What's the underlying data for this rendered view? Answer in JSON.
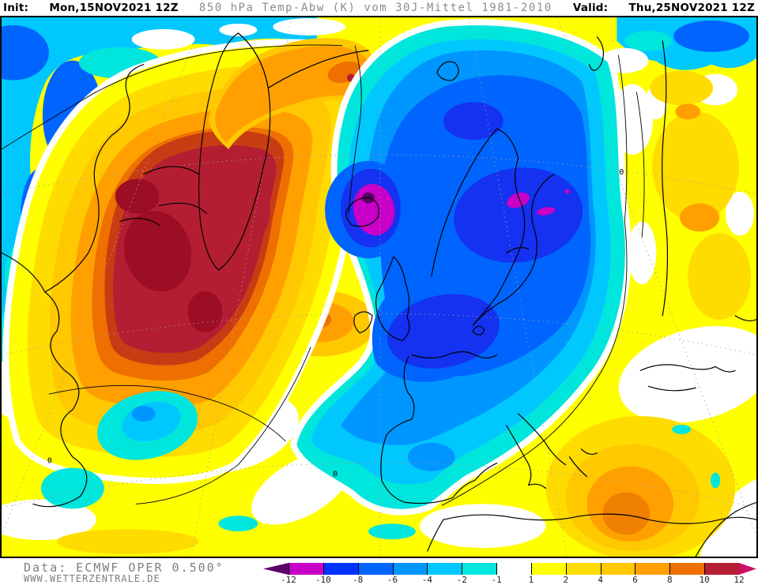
{
  "header": {
    "init_label": "Init:",
    "init_value": "Mon,15NOV2021 12Z",
    "map_title": "850 hPa Temp-Abw (K) vom 30J-Mittel 1981-2010",
    "valid_label": "Valid:",
    "valid_value": "Thu,25NOV2021 12Z"
  },
  "footer": {
    "data_source": "Data: ECMWF OPER 0.500°",
    "website": "WWW.WETTERZENTRALE.DE"
  },
  "legend": {
    "unit": "K",
    "tick_labels": [
      "-12",
      "-10",
      "-8",
      "-6",
      "-4",
      "-2",
      "-1",
      "1",
      "2",
      "4",
      "6",
      "8",
      "10",
      "12"
    ],
    "segment_colors": [
      "#C800C8",
      "#0032FF",
      "#0064FF",
      "#0096FF",
      "#00C8FF",
      "#00E6DC",
      "#FFFFFF",
      "#FFFF00",
      "#FFDC00",
      "#FFC800",
      "#FFA000",
      "#EE7000",
      "#B41E32"
    ],
    "arrow_left_color": "#5A0066",
    "arrow_right_color": "#CC0F69"
  },
  "map": {
    "contour_label": "0",
    "projection_area": "North Atlantic / Europe",
    "regions": [
      {
        "area": "Northeast Canada / Baffin Bay / West Greenland",
        "anomaly": "warm",
        "approx_extreme_k": "> +12"
      },
      {
        "area": "Seas around and southeast of Iceland",
        "anomaly": "cold",
        "approx_extreme_k": "< -12"
      },
      {
        "area": "Baltic / Estonia region",
        "anomaly": "cold",
        "approx_extreme_k": "-10 to -12"
      },
      {
        "area": "Scandinavia / British Isles / Central Europe",
        "anomaly": "cold",
        "approx_extreme_k": "-6 to -10"
      },
      {
        "area": "Western Russia",
        "anomaly": "warm",
        "approx_extreme_k": "+1 to +4"
      },
      {
        "area": "Northeast Africa / Egypt",
        "anomaly": "warm",
        "approx_extreme_k": "+4 to +8"
      },
      {
        "area": "Central North Atlantic ridge",
        "anomaly": "warm",
        "approx_extreme_k": "+2 to +8"
      }
    ]
  }
}
